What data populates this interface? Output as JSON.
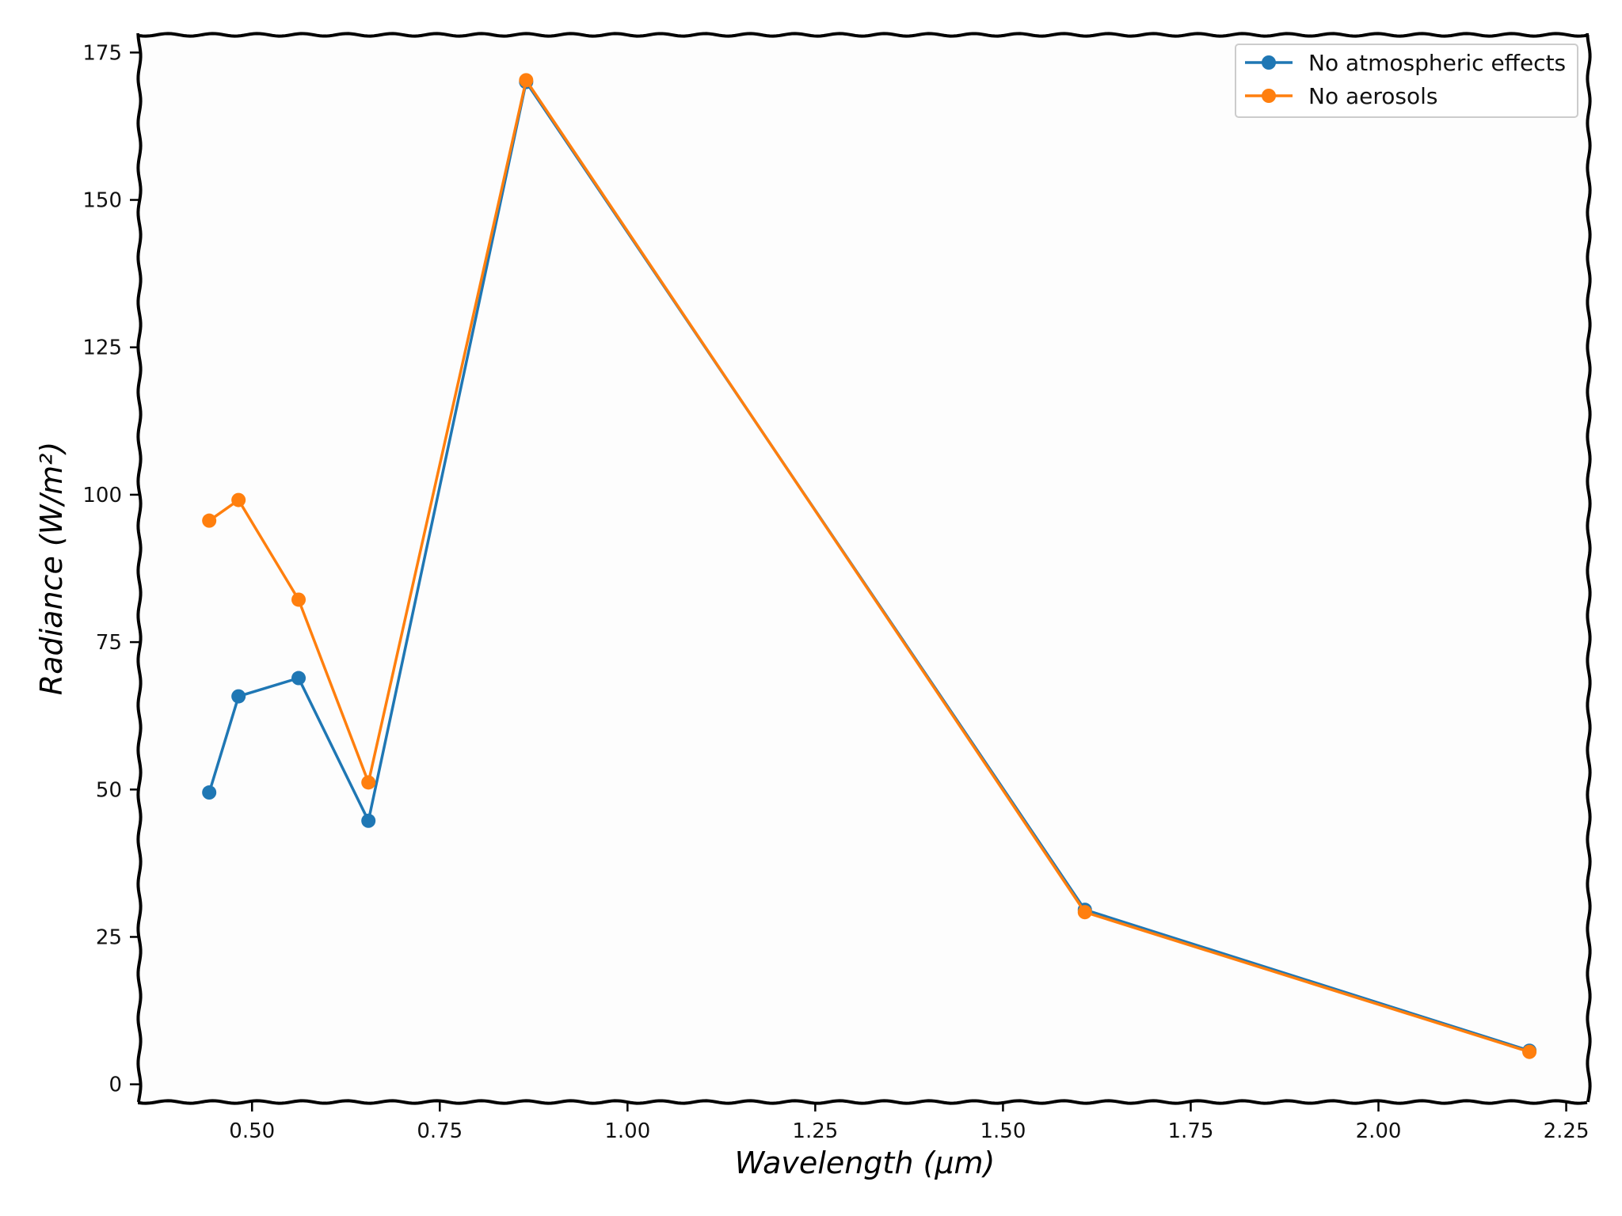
{
  "chart_data": {
    "type": "line",
    "title": "",
    "xlabel": "Wavelength (μm)",
    "ylabel": "Radiance (W/m²)",
    "xlim": [
      0.35,
      2.28
    ],
    "ylim": [
      -3,
      178
    ],
    "x_ticks": [
      "0.50",
      "0.75",
      "1.00",
      "1.25",
      "1.50",
      "1.75",
      "2.00",
      "2.25"
    ],
    "y_ticks": [
      "0",
      "25",
      "50",
      "75",
      "100",
      "125",
      "150",
      "175"
    ],
    "grid": false,
    "legend_position": "top-right",
    "x": [
      0.443,
      0.482,
      0.562,
      0.655,
      0.865,
      1.609,
      2.201
    ],
    "series": [
      {
        "name": "No atmospheric effects",
        "color": "#1f77b4",
        "values": [
          49.5,
          65.8,
          68.9,
          44.7,
          170.0,
          29.6,
          5.7
        ]
      },
      {
        "name": "No aerosols",
        "color": "#ff7f0e",
        "values": [
          95.6,
          99.1,
          82.2,
          51.2,
          170.3,
          29.2,
          5.5
        ]
      }
    ]
  }
}
